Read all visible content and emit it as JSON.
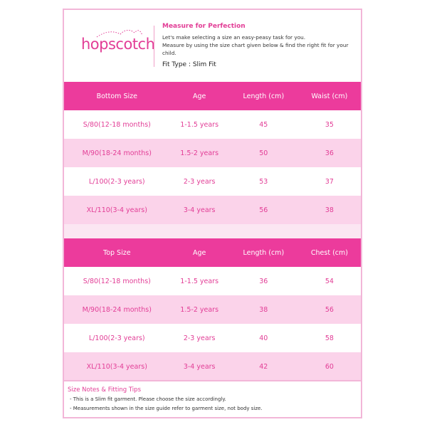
{
  "brand": {
    "logo_text": "hopscotch",
    "accent": "#ec3b9c",
    "alt_row": "#fbd3ea"
  },
  "intro": {
    "title": "Measure for Perfection",
    "line1": "Let's make selecting a size an easy-peasy task for you.",
    "line2": "Measure by using the size chart given below & find the right fit for your child.",
    "fit_type": "Fit Type : Slim Fit"
  },
  "bottom_table": {
    "headers": [
      "Bottom Size",
      "Age",
      "Length (cm)",
      "Waist (cm)"
    ],
    "rows": [
      [
        "S/80(12-18 months)",
        "1-1.5 years",
        "45",
        "35"
      ],
      [
        "M/90(18-24 months)",
        "1.5-2 years",
        "50",
        "36"
      ],
      [
        "L/100(2-3 years)",
        "2-3 years",
        "53",
        "37"
      ],
      [
        "XL/110(3-4 years)",
        "3-4 years",
        "56",
        "38"
      ]
    ]
  },
  "top_table": {
    "headers": [
      "Top Size",
      "Age",
      "Length (cm)",
      "Chest (cm)"
    ],
    "rows": [
      [
        "S/80(12-18 months)",
        "1-1.5 years",
        "36",
        "54"
      ],
      [
        "M/90(18-24 months)",
        "1.5-2 years",
        "38",
        "56"
      ],
      [
        "L/100(2-3 years)",
        "2-3 years",
        "40",
        "58"
      ],
      [
        "XL/110(3-4 years)",
        "3-4 years",
        "42",
        "60"
      ]
    ]
  },
  "notes": {
    "title": "Size Notes & Fitting Tips",
    "items": [
      "- This is a Slim fit garment. Please choose the size accordingly.",
      "- Measurements shown in the size guide refer to garment size, not body size."
    ]
  }
}
